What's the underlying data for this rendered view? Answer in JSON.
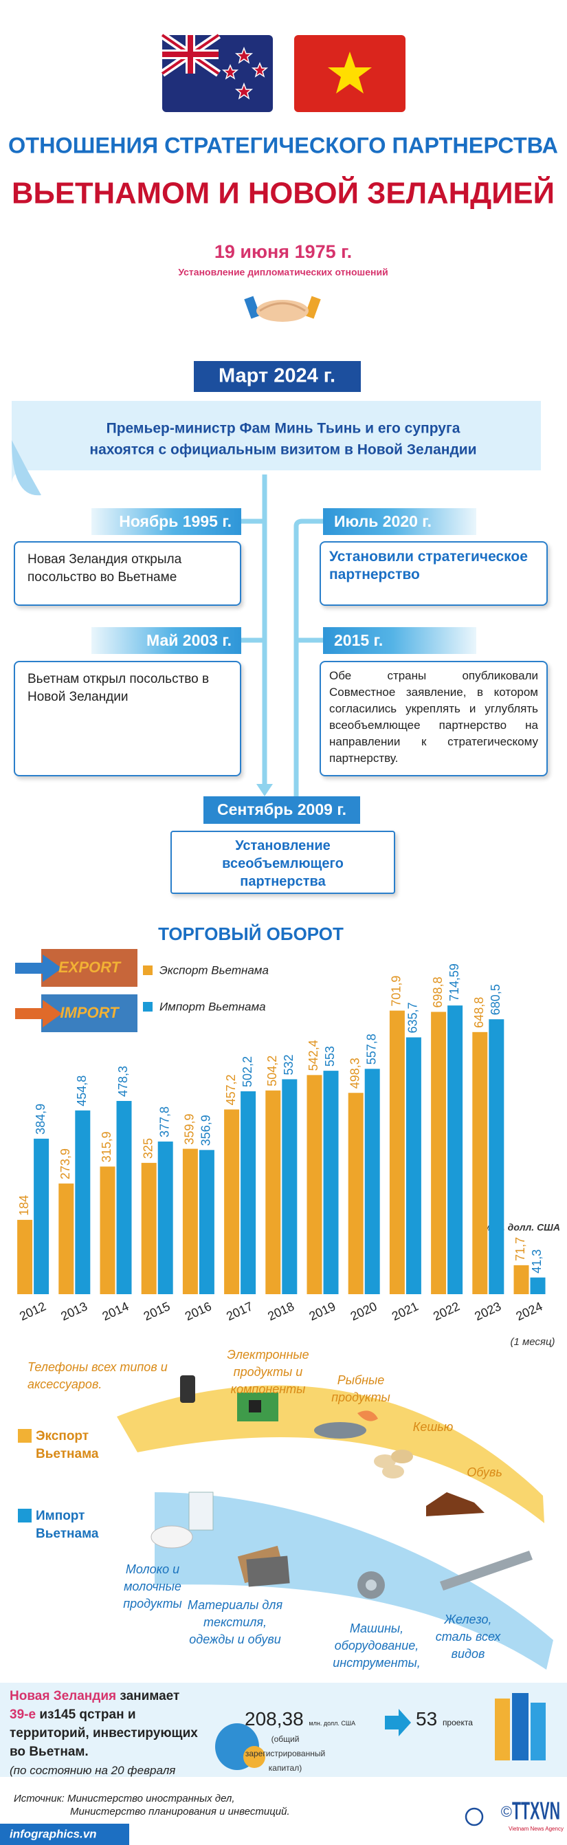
{
  "header": {
    "title_line1": "ОТНОШЕНИЯ СТРАТЕГИЧЕСКОГО ПАРТНЕРСТВА",
    "title_line2": "ВЬЕТНАМОМ И НОВОЙ ЗЕЛАНДИЕЙ",
    "date": "19 июня 1975 г.",
    "date_caption": "Установление дипломатических отношений"
  },
  "visit": {
    "date": "Март 2024 г.",
    "lines": [
      "Премьер-министр Фам Минь Тьинь и его супруга",
      "нахоятся с официальным визитом в Новой Зеландии"
    ]
  },
  "timeline": [
    {
      "date": "Ноябрь 1995 г.",
      "text": "Новая Зеландия открыла посольство во Вьетнаме"
    },
    {
      "date": "Май 2003 г.",
      "text": "Вьетнам открыл посольство в Новой Зеландии"
    },
    {
      "date": "Июль 2020 г.",
      "text": "Установили стратегическое партнерство"
    },
    {
      "date": "2015 г.",
      "text": "Обе страны опубликовали Совместное заявление, в котором согласились укреплять и углублять всеобъемлющее партнерство на направлении к стратегическому партнерству."
    },
    {
      "date": "Сентябрь 2009 г.",
      "text": "Установление всеобъемлющего партнерства"
    }
  ],
  "chart_data": {
    "type": "bar",
    "title": "ТОРГОВЫЙ ОБОРОТ",
    "container_labels": [
      "EXPORT",
      "IMPORT"
    ],
    "unit": "млн. долл. США",
    "last_period_note": "(1 месяц)",
    "categories": [
      "2012",
      "2013",
      "2014",
      "2015",
      "2016",
      "2017",
      "2018",
      "2019",
      "2020",
      "2021",
      "2022",
      "2023",
      "2024"
    ],
    "series": [
      {
        "name": "Экспорт Вьетнама",
        "color": "#eea52a",
        "values": [
          184,
          273.9,
          315.9,
          325,
          359.9,
          457.2,
          504.2,
          542.4,
          498.3,
          701.9,
          698.8,
          648.8,
          71.7
        ],
        "value_labels": [
          "184",
          "273,9",
          "315,9",
          "325",
          "359,9",
          "457,2",
          "504,2",
          "542,4",
          "498,3",
          "701,9",
          "698,8",
          "648,8",
          "71,7"
        ]
      },
      {
        "name": "Импорт Вьетнама",
        "color": "#1b9ad7",
        "values": [
          384.9,
          454.8,
          478.3,
          377.8,
          356.9,
          502.2,
          532,
          553,
          557.8,
          635.7,
          714.59,
          680.5,
          41.3
        ],
        "value_labels": [
          "384,9",
          "454,8",
          "478,3",
          "377,8",
          "356,9",
          "502,2",
          "532",
          "553",
          "557,8",
          "635,7",
          "714,59",
          "680,5",
          "41,3"
        ]
      }
    ],
    "ylim": [
      0,
      800
    ],
    "legend": "top-left",
    "grid": false
  },
  "products": {
    "export_legend": [
      "Экспорт",
      "Вьетнама"
    ],
    "import_legend": [
      "Импорт",
      "Вьетнама"
    ],
    "export": [
      [
        "Телефоны всех типов и",
        "аксессуаров."
      ],
      [
        "Электронные",
        "продукты и",
        "компоненты"
      ],
      [
        "Рыбные",
        "продукты"
      ],
      [
        "Кешью"
      ],
      [
        "Обувь"
      ]
    ],
    "import": [
      [
        "Молоко и",
        "молочные",
        "продукты"
      ],
      [
        "Материалы для",
        "текстиля,",
        "одежды и обуви"
      ],
      [
        "Машины,",
        "оборудование,",
        "инструменты,"
      ],
      [
        "Железо,",
        "сталь всех",
        "видов"
      ]
    ]
  },
  "investment": {
    "country": "Новая Зеландия",
    "verb": "занимает",
    "rank": "39-е",
    "lines": [
      "из145 qстран и",
      "территорий, инвестирующих",
      "во Вьетнам."
    ],
    "as_of": "(по состоянию на 20 февраля",
    "capital": "208,38",
    "capital_unit": "млн. долл. США",
    "capital_caption": [
      "(общий зарегистрированный",
      "капитал)"
    ],
    "projects": "53",
    "projects_label": "проекта"
  },
  "source": [
    "Источник: Министерство иностранных дел,",
    "Министерство планирования и инвестиций."
  ],
  "footer": {
    "site": "infographics.vn",
    "agency": "TTXVN",
    "agency_sub": "Vietnam News Agency"
  }
}
